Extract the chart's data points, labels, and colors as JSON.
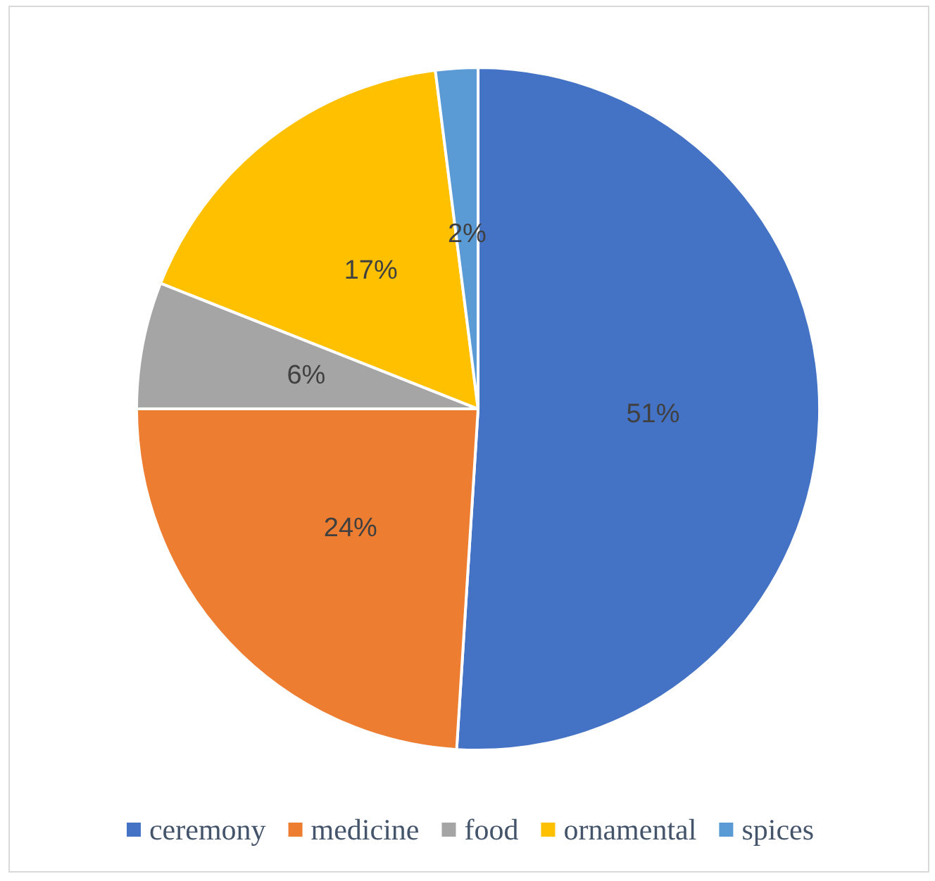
{
  "chart_data": {
    "type": "pie",
    "categories": [
      "ceremony",
      "medicine",
      "food",
      "ornamental",
      "spices"
    ],
    "values": [
      51,
      24,
      6,
      17,
      2
    ],
    "colors": [
      "#4472c4",
      "#ed7d31",
      "#a5a5a5",
      "#ffc000",
      "#5b9bd5"
    ],
    "value_labels": [
      "51%",
      "24%",
      "6%",
      "17%",
      "2%"
    ],
    "legend": "bottom"
  }
}
